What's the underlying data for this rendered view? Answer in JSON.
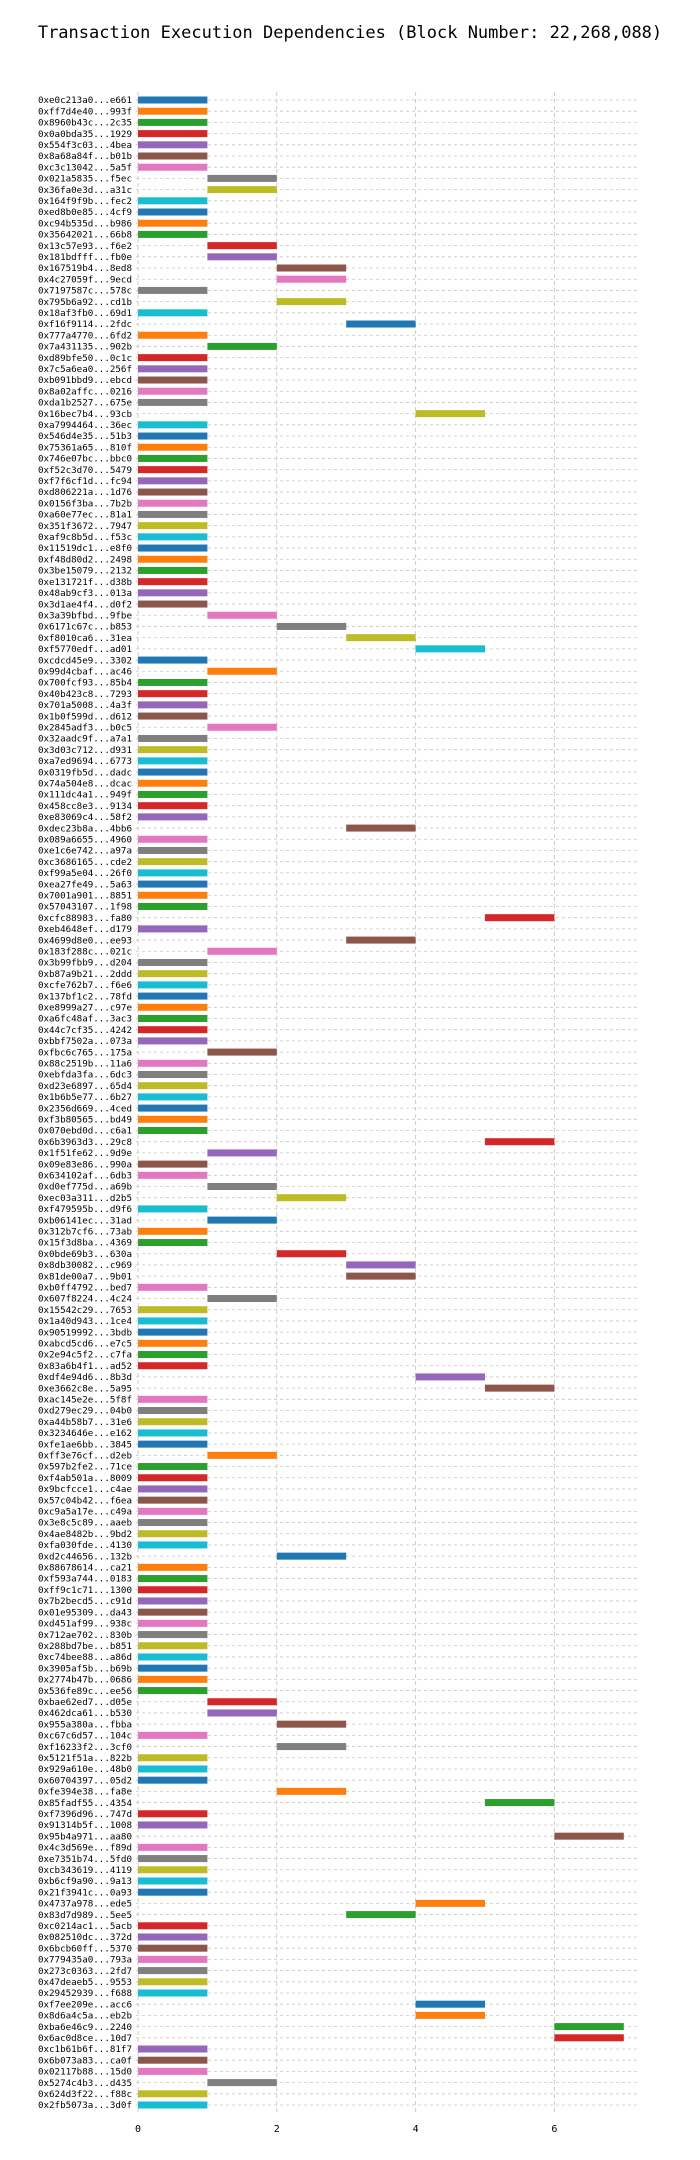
{
  "chart_data": {
    "type": "bar",
    "title": "Transaction Execution Dependencies (Block Number: 22,268,088)",
    "xlabel": "",
    "ylabel": "",
    "xlim": [
      0,
      8
    ],
    "xticks": [
      0,
      2,
      4,
      6
    ],
    "grid": true,
    "palette": [
      "#1f77b4",
      "#ff7f0e",
      "#2ca02c",
      "#d62728",
      "#9467bd",
      "#8c564b",
      "#e377c2",
      "#7f7f7f",
      "#bcbd22",
      "#17becf"
    ],
    "transactions": [
      {
        "label": "0xe0c213a0...e661",
        "start": 0,
        "color": 0
      },
      {
        "label": "0xff7d4e40...993f",
        "start": 0,
        "color": 1
      },
      {
        "label": "0x8960b43c...2c35",
        "start": 0,
        "color": 2
      },
      {
        "label": "0x0a0bda35...1929",
        "start": 0,
        "color": 3
      },
      {
        "label": "0x554f3c03...4bea",
        "start": 0,
        "color": 4
      },
      {
        "label": "0x8a68a84f...b01b",
        "start": 0,
        "color": 5
      },
      {
        "label": "0xc3c13042...5a5f",
        "start": 0,
        "color": 6
      },
      {
        "label": "0x021a5835...f5ec",
        "start": 1,
        "color": 7
      },
      {
        "label": "0x36fa0e3d...a31c",
        "start": 1,
        "color": 8
      },
      {
        "label": "0x164f9f9b...fec2",
        "start": 0,
        "color": 9
      },
      {
        "label": "0xed8b0e85...4cf9",
        "start": 0,
        "color": 0
      },
      {
        "label": "0xc94b535d...b986",
        "start": 0,
        "color": 1
      },
      {
        "label": "0x35642021...66b8",
        "start": 0,
        "color": 2
      },
      {
        "label": "0x13c57e93...f6e2",
        "start": 1,
        "color": 3
      },
      {
        "label": "0x181bdfff...fb0e",
        "start": 1,
        "color": 4
      },
      {
        "label": "0x167519b4...8ed8",
        "start": 2,
        "color": 5
      },
      {
        "label": "0x4c27059f...9ecd",
        "start": 2,
        "color": 6
      },
      {
        "label": "0x7197587c...578c",
        "start": 0,
        "color": 7
      },
      {
        "label": "0x795b6a92...cd1b",
        "start": 2,
        "color": 8
      },
      {
        "label": "0x18af3fb0...69d1",
        "start": 0,
        "color": 9
      },
      {
        "label": "0xf16f9114...2fdc",
        "start": 3,
        "color": 0
      },
      {
        "label": "0x777a4770...6fd2",
        "start": 0,
        "color": 1
      },
      {
        "label": "0x7a431135...902b",
        "start": 1,
        "color": 2
      },
      {
        "label": "0xd89bfe50...0c1c",
        "start": 0,
        "color": 3
      },
      {
        "label": "0x7c5a6ea0...256f",
        "start": 0,
        "color": 4
      },
      {
        "label": "0xb091bbd9...ebcd",
        "start": 0,
        "color": 5
      },
      {
        "label": "0x8a02affc...0216",
        "start": 0,
        "color": 6
      },
      {
        "label": "0xda1b2527...675e",
        "start": 0,
        "color": 7
      },
      {
        "label": "0x16bec7b4...93cb",
        "start": 4,
        "color": 8
      },
      {
        "label": "0xa7994464...36ec",
        "start": 0,
        "color": 9
      },
      {
        "label": "0x546d4e35...51b3",
        "start": 0,
        "color": 0
      },
      {
        "label": "0x75361a65...810f",
        "start": 0,
        "color": 1
      },
      {
        "label": "0x746e07bc...bbc0",
        "start": 0,
        "color": 2
      },
      {
        "label": "0xf52c3d70...5479",
        "start": 0,
        "color": 3
      },
      {
        "label": "0xf7f6cf1d...fc94",
        "start": 0,
        "color": 4
      },
      {
        "label": "0xd806221a...1d76",
        "start": 0,
        "color": 5
      },
      {
        "label": "0x0156f3ba...7b2b",
        "start": 0,
        "color": 6
      },
      {
        "label": "0xa60e77ec...81a1",
        "start": 0,
        "color": 7
      },
      {
        "label": "0x351f3672...7947",
        "start": 0,
        "color": 8
      },
      {
        "label": "0xaf9c8b5d...f53c",
        "start": 0,
        "color": 9
      },
      {
        "label": "0x11519dc1...e8f0",
        "start": 0,
        "color": 0
      },
      {
        "label": "0xf48d80d2...2498",
        "start": 0,
        "color": 1
      },
      {
        "label": "0x3be15079...2132",
        "start": 0,
        "color": 2
      },
      {
        "label": "0xe131721f...d38b",
        "start": 0,
        "color": 3
      },
      {
        "label": "0x48ab9cf3...013a",
        "start": 0,
        "color": 4
      },
      {
        "label": "0x3d1ae4f4...d0f2",
        "start": 0,
        "color": 5
      },
      {
        "label": "0x3a39bfbd...9fbe",
        "start": 1,
        "color": 6
      },
      {
        "label": "0x6171c67c...b853",
        "start": 2,
        "color": 7
      },
      {
        "label": "0xf8010ca6...31ea",
        "start": 3,
        "color": 8
      },
      {
        "label": "0xf5770edf...ad01",
        "start": 4,
        "color": 9
      },
      {
        "label": "0xcdcd45e9...3302",
        "start": 0,
        "color": 0
      },
      {
        "label": "0x99d4cbaf...ac46",
        "start": 1,
        "color": 1
      },
      {
        "label": "0x700fcf93...85b4",
        "start": 0,
        "color": 2
      },
      {
        "label": "0x40b423c8...7293",
        "start": 0,
        "color": 3
      },
      {
        "label": "0x701a5008...4a3f",
        "start": 0,
        "color": 4
      },
      {
        "label": "0x1b0f599d...d612",
        "start": 0,
        "color": 5
      },
      {
        "label": "0x2845adf3...b0c5",
        "start": 1,
        "color": 6
      },
      {
        "label": "0x32aadc9f...a7a1",
        "start": 0,
        "color": 7
      },
      {
        "label": "0x3d03c712...d931",
        "start": 0,
        "color": 8
      },
      {
        "label": "0xa7ed9694...6773",
        "start": 0,
        "color": 9
      },
      {
        "label": "0x0319fb5d...dadc",
        "start": 0,
        "color": 0
      },
      {
        "label": "0x74a504e8...dcac",
        "start": 0,
        "color": 1
      },
      {
        "label": "0x111dc4a1...949f",
        "start": 0,
        "color": 2
      },
      {
        "label": "0x458cc8e3...9134",
        "start": 0,
        "color": 3
      },
      {
        "label": "0xe83069c4...58f2",
        "start": 0,
        "color": 4
      },
      {
        "label": "0xdec23b8a...4bb6",
        "start": 3,
        "color": 5
      },
      {
        "label": "0x089a6655...4960",
        "start": 0,
        "color": 6
      },
      {
        "label": "0xe1c6e742...a97a",
        "start": 0,
        "color": 7
      },
      {
        "label": "0xc3686165...cde2",
        "start": 0,
        "color": 8
      },
      {
        "label": "0xf99a5e04...26f0",
        "start": 0,
        "color": 9
      },
      {
        "label": "0xea27fe49...5a63",
        "start": 0,
        "color": 0
      },
      {
        "label": "0x7001a901...8851",
        "start": 0,
        "color": 1
      },
      {
        "label": "0x57043107...1f98",
        "start": 0,
        "color": 2
      },
      {
        "label": "0xcfc88983...fa80",
        "start": 5,
        "color": 3
      },
      {
        "label": "0xeb4648ef...d179",
        "start": 0,
        "color": 4
      },
      {
        "label": "0x4699d8e0...ee93",
        "start": 3,
        "color": 5
      },
      {
        "label": "0x183f288c...021c",
        "start": 1,
        "color": 6
      },
      {
        "label": "0x3b99fbb9...d204",
        "start": 0,
        "color": 7
      },
      {
        "label": "0xb87a9b21...2ddd",
        "start": 0,
        "color": 8
      },
      {
        "label": "0xcfe762b7...f6e6",
        "start": 0,
        "color": 9
      },
      {
        "label": "0x137bf1c2...78fd",
        "start": 0,
        "color": 0
      },
      {
        "label": "0xe8999a27...c97e",
        "start": 0,
        "color": 1
      },
      {
        "label": "0xa6fc48af...3ac3",
        "start": 0,
        "color": 2
      },
      {
        "label": "0x44c7cf35...4242",
        "start": 0,
        "color": 3
      },
      {
        "label": "0xbbf7502a...073a",
        "start": 0,
        "color": 4
      },
      {
        "label": "0xfbc6c765...175a",
        "start": 1,
        "color": 5
      },
      {
        "label": "0x88c2519b...11a6",
        "start": 0,
        "color": 6
      },
      {
        "label": "0xebfda3fa...6dc3",
        "start": 0,
        "color": 7
      },
      {
        "label": "0xd23e6897...65d4",
        "start": 0,
        "color": 8
      },
      {
        "label": "0x1b6b5e77...6b27",
        "start": 0,
        "color": 9
      },
      {
        "label": "0x2356d669...4ced",
        "start": 0,
        "color": 0
      },
      {
        "label": "0xf3b80565...bd49",
        "start": 0,
        "color": 1
      },
      {
        "label": "0x070ebd0d...c6a1",
        "start": 0,
        "color": 2
      },
      {
        "label": "0x6b3963d3...29c8",
        "start": 5,
        "color": 3
      },
      {
        "label": "0x1f51fe62...9d9e",
        "start": 1,
        "color": 4
      },
      {
        "label": "0x09e83e86...990a",
        "start": 0,
        "color": 5
      },
      {
        "label": "0x634102af...6db3",
        "start": 0,
        "color": 6
      },
      {
        "label": "0xd0ef775d...a69b",
        "start": 1,
        "color": 7
      },
      {
        "label": "0xec03a311...d2b5",
        "start": 2,
        "color": 8
      },
      {
        "label": "0xf479595b...d9f6",
        "start": 0,
        "color": 9
      },
      {
        "label": "0xb06141ec...31ad",
        "start": 1,
        "color": 0
      },
      {
        "label": "0x312b7cf6...73ab",
        "start": 0,
        "color": 1
      },
      {
        "label": "0x15f3d8ba...4369",
        "start": 0,
        "color": 2
      },
      {
        "label": "0x0bde69b3...630a",
        "start": 2,
        "color": 3
      },
      {
        "label": "0x8db30082...c969",
        "start": 3,
        "color": 4
      },
      {
        "label": "0x81de00a7...9b01",
        "start": 3,
        "color": 5
      },
      {
        "label": "0xb0ff4792...bed7",
        "start": 0,
        "color": 6
      },
      {
        "label": "0x607f8224...4c24",
        "start": 1,
        "color": 7
      },
      {
        "label": "0x15542c29...7653",
        "start": 0,
        "color": 8
      },
      {
        "label": "0x1a40d943...1ce4",
        "start": 0,
        "color": 9
      },
      {
        "label": "0x90519992...3bdb",
        "start": 0,
        "color": 0
      },
      {
        "label": "0xabcd5cd6...e7c5",
        "start": 0,
        "color": 1
      },
      {
        "label": "0x2e94c5f2...c7fa",
        "start": 0,
        "color": 2
      },
      {
        "label": "0x83a6b4f1...ad52",
        "start": 0,
        "color": 3
      },
      {
        "label": "0xdf4e94d6...8b3d",
        "start": 4,
        "color": 4
      },
      {
        "label": "0xe3662c8e...5a95",
        "start": 5,
        "color": 5
      },
      {
        "label": "0xac145e2e...5f8f",
        "start": 0,
        "color": 6
      },
      {
        "label": "0xd279ec29...04b0",
        "start": 0,
        "color": 7
      },
      {
        "label": "0xa44b58b7...31e6",
        "start": 0,
        "color": 8
      },
      {
        "label": "0x3234646e...e162",
        "start": 0,
        "color": 9
      },
      {
        "label": "0xfe1ae6bb...3845",
        "start": 0,
        "color": 0
      },
      {
        "label": "0xff3e76cf...d2eb",
        "start": 1,
        "color": 1
      },
      {
        "label": "0x597b2fe2...71ce",
        "start": 0,
        "color": 2
      },
      {
        "label": "0xf4ab501a...8009",
        "start": 0,
        "color": 3
      },
      {
        "label": "0x9bcfcce1...c4ae",
        "start": 0,
        "color": 4
      },
      {
        "label": "0x57c04b42...f6ea",
        "start": 0,
        "color": 5
      },
      {
        "label": "0xc9a5a17e...c49a",
        "start": 0,
        "color": 6
      },
      {
        "label": "0x3e8c5c89...aaeb",
        "start": 0,
        "color": 7
      },
      {
        "label": "0x4ae8482b...9bd2",
        "start": 0,
        "color": 8
      },
      {
        "label": "0xfa030fde...4130",
        "start": 0,
        "color": 9
      },
      {
        "label": "0xd2c44656...132b",
        "start": 2,
        "color": 0
      },
      {
        "label": "0x88678614...ca21",
        "start": 0,
        "color": 1
      },
      {
        "label": "0xf593a744...0183",
        "start": 0,
        "color": 2
      },
      {
        "label": "0xff9c1c71...1300",
        "start": 0,
        "color": 3
      },
      {
        "label": "0x7b2becd5...c91d",
        "start": 0,
        "color": 4
      },
      {
        "label": "0x01e95309...da43",
        "start": 0,
        "color": 5
      },
      {
        "label": "0xd451af99...938c",
        "start": 0,
        "color": 6
      },
      {
        "label": "0x712ae702...830b",
        "start": 0,
        "color": 7
      },
      {
        "label": "0x288bd7be...b851",
        "start": 0,
        "color": 8
      },
      {
        "label": "0xc74bee88...a86d",
        "start": 0,
        "color": 9
      },
      {
        "label": "0x3905af5b...b69b",
        "start": 0,
        "color": 0
      },
      {
        "label": "0x2774b47b...0686",
        "start": 0,
        "color": 1
      },
      {
        "label": "0x536fe89c...ee56",
        "start": 0,
        "color": 2
      },
      {
        "label": "0xbae62ed7...d05e",
        "start": 1,
        "color": 3
      },
      {
        "label": "0x462dca61...b530",
        "start": 1,
        "color": 4
      },
      {
        "label": "0x955a380a...fbba",
        "start": 2,
        "color": 5
      },
      {
        "label": "0xc67c6d57...104c",
        "start": 0,
        "color": 6
      },
      {
        "label": "0xf16233f2...3cf0",
        "start": 2,
        "color": 7
      },
      {
        "label": "0x5121f51a...822b",
        "start": 0,
        "color": 8
      },
      {
        "label": "0x929a610e...48b0",
        "start": 0,
        "color": 9
      },
      {
        "label": "0x60704397...05d2",
        "start": 0,
        "color": 0
      },
      {
        "label": "0xfe394e38...fa8e",
        "start": 2,
        "color": 1
      },
      {
        "label": "0x85fadf55...4354",
        "start": 5,
        "color": 2
      },
      {
        "label": "0xf7396d96...747d",
        "start": 0,
        "color": 3
      },
      {
        "label": "0x91314b5f...1008",
        "start": 0,
        "color": 4
      },
      {
        "label": "0x95b4a971...aa80",
        "start": 6,
        "color": 5
      },
      {
        "label": "0x4c3d569e...f89d",
        "start": 0,
        "color": 6
      },
      {
        "label": "0xe7351b74...5fd0",
        "start": 0,
        "color": 7
      },
      {
        "label": "0xcb343619...4119",
        "start": 0,
        "color": 8
      },
      {
        "label": "0xb6cf9a90...9a13",
        "start": 0,
        "color": 9
      },
      {
        "label": "0x21f3941c...0a93",
        "start": 0,
        "color": 0
      },
      {
        "label": "0x4737a978...ede5",
        "start": 4,
        "color": 1
      },
      {
        "label": "0x83d7d989...5ee5",
        "start": 3,
        "color": 2
      },
      {
        "label": "0xc0214ac1...5acb",
        "start": 0,
        "color": 3
      },
      {
        "label": "0x082510dc...372d",
        "start": 0,
        "color": 4
      },
      {
        "label": "0x6bcb60ff...5370",
        "start": 0,
        "color": 5
      },
      {
        "label": "0x779435a0...793a",
        "start": 0,
        "color": 6
      },
      {
        "label": "0x273c0363...2fd7",
        "start": 0,
        "color": 7
      },
      {
        "label": "0x47deaeb5...9553",
        "start": 0,
        "color": 8
      },
      {
        "label": "0x29452939...f688",
        "start": 0,
        "color": 9
      },
      {
        "label": "0xf7ee209e...acc6",
        "start": 4,
        "color": 0
      },
      {
        "label": "0x8d6a4c5a...eb2b",
        "start": 4,
        "color": 1
      },
      {
        "label": "0xba6e46c9...2240",
        "start": 6,
        "color": 2
      },
      {
        "label": "0x6ac0d8ce...10d7",
        "start": 6,
        "color": 3
      },
      {
        "label": "0xc1b61b6f...81f7",
        "start": 0,
        "color": 4
      },
      {
        "label": "0x6b073a83...ca0f",
        "start": 0,
        "color": 5
      },
      {
        "label": "0x02117b88...15d0",
        "start": 0,
        "color": 6
      },
      {
        "label": "0x5274c4b3...d435",
        "start": 1,
        "color": 7
      },
      {
        "label": "0x624d3f22...f88c",
        "start": 0,
        "color": 8
      },
      {
        "label": "0x2fb5073a...3d0f",
        "start": 0,
        "color": 9
      }
    ]
  }
}
